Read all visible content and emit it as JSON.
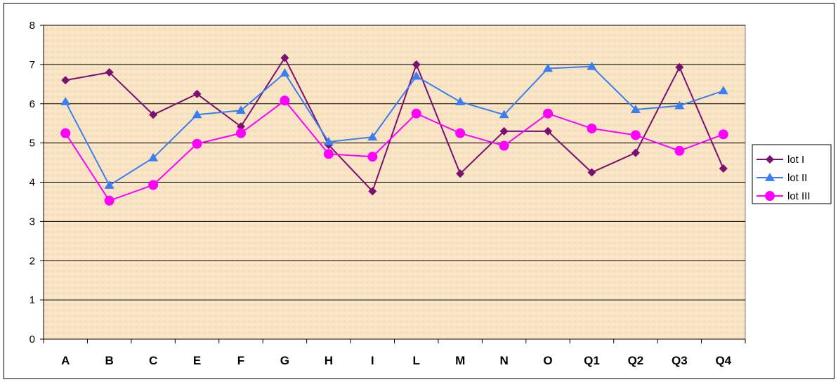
{
  "chart_data": {
    "type": "line",
    "categories": [
      "A",
      "B",
      "C",
      "E",
      "F",
      "G",
      "H",
      "I",
      "L",
      "M",
      "N",
      "O",
      "Q1",
      "Q2",
      "Q3",
      "Q4"
    ],
    "ylim": [
      0,
      8
    ],
    "yticks": [
      "0",
      "1",
      "2",
      "3",
      "4",
      "5",
      "6",
      "7",
      "8"
    ],
    "grid": true,
    "legend_position": "right",
    "series": [
      {
        "name": "lot I",
        "color": "#7b0f72",
        "marker": "diamond",
        "values": [
          6.6,
          6.8,
          5.72,
          6.25,
          5.42,
          7.17,
          4.95,
          3.77,
          7.0,
          4.22,
          5.3,
          5.3,
          4.25,
          4.75,
          6.93,
          4.35
        ]
      },
      {
        "name": "lot II",
        "color": "#3a7ef0",
        "marker": "triangle",
        "values": [
          6.05,
          3.92,
          4.62,
          5.72,
          5.83,
          6.78,
          5.03,
          5.15,
          6.7,
          6.05,
          5.72,
          6.9,
          6.95,
          5.85,
          5.95,
          6.33
        ]
      },
      {
        "name": "lot III",
        "color": "#ff00ff",
        "marker": "circle",
        "values": [
          5.25,
          3.53,
          3.93,
          4.98,
          5.25,
          6.08,
          4.72,
          4.65,
          5.75,
          5.25,
          4.93,
          5.75,
          5.37,
          5.2,
          4.8,
          5.22
        ]
      }
    ]
  }
}
